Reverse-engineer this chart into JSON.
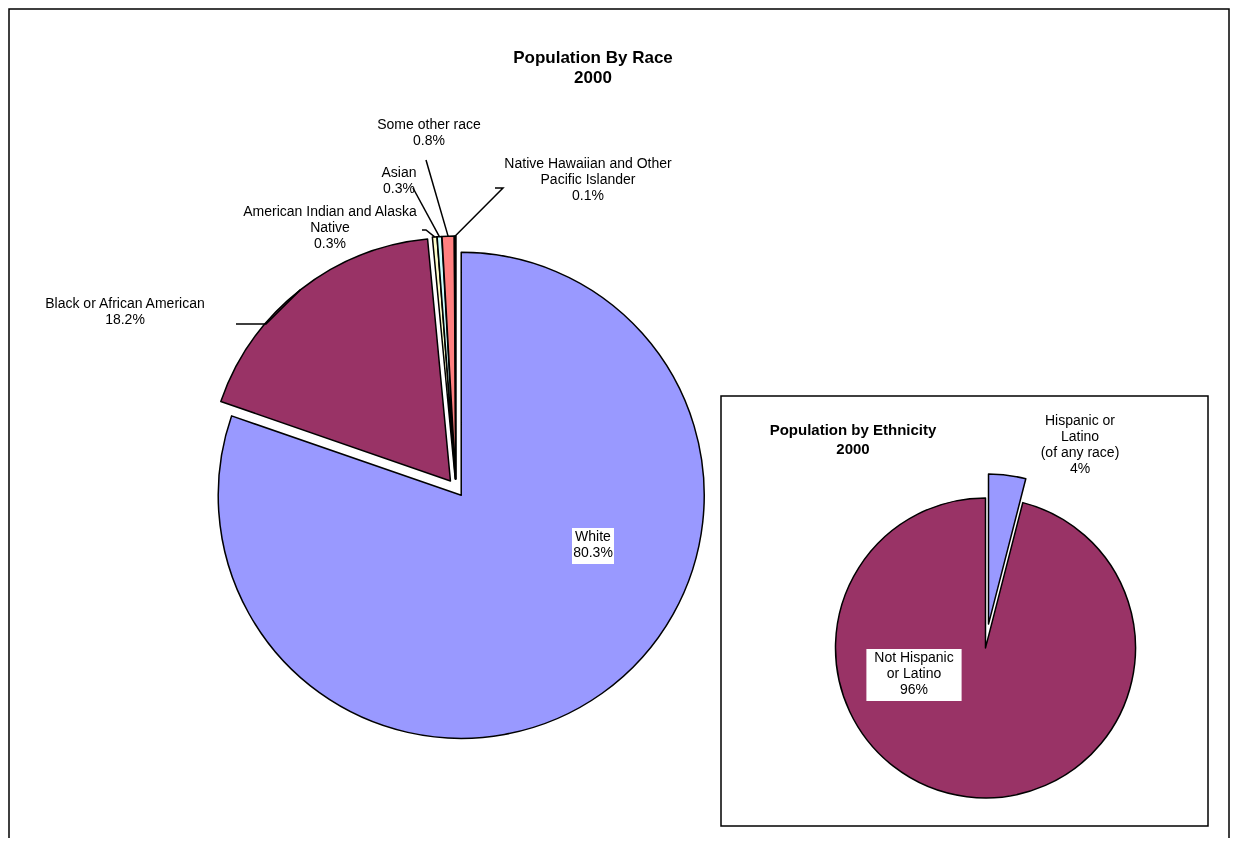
{
  "chart_data": [
    {
      "type": "pie",
      "title": "Population By Race",
      "subtitle": "2000",
      "categories": [
        "White",
        "Black or African American",
        "American Indian and Alaska Native",
        "Asian",
        "Some other race",
        "Native Hawaiian and Other Pacific Islander"
      ],
      "values": [
        80.3,
        18.2,
        0.3,
        0.3,
        0.8,
        0.1
      ],
      "value_labels": [
        "80.3%",
        "18.2%",
        "0.3%",
        "0.3%",
        "0.8%",
        "0.1%"
      ],
      "colors": [
        "#9999ff",
        "#993366",
        "#ffffcc",
        "#ccffff",
        "#ff8080",
        "#0066cc"
      ]
    },
    {
      "type": "pie",
      "title": "Population by Ethnicity",
      "subtitle": "2000",
      "categories": [
        "Hispanic or Latino (of any race)",
        "Not Hispanic or Latino"
      ],
      "values": [
        4,
        96
      ],
      "value_labels": [
        "4%",
        "96%"
      ],
      "colors": [
        "#9999ff",
        "#993366"
      ]
    }
  ]
}
